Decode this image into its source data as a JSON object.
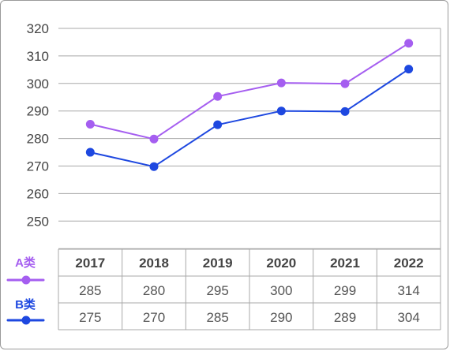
{
  "chart_data": {
    "type": "line",
    "categories": [
      "2017",
      "2018",
      "2019",
      "2020",
      "2021",
      "2022"
    ],
    "y_ticks": [
      "320",
      "310",
      "300",
      "290",
      "280",
      "270",
      "260",
      "250"
    ],
    "ylim": [
      240,
      320
    ],
    "grid": true,
    "legend_position": "left, beside table",
    "series": [
      {
        "name": "A类",
        "color": "#a55ef0",
        "values": [
          285,
          280,
          295,
          300,
          299,
          314
        ],
        "table_values": [
          "285",
          "280",
          "295",
          "300",
          "299",
          "314"
        ],
        "plot_values": [
          285.2,
          279.8,
          295.3,
          300.2,
          299.9,
          314.6
        ]
      },
      {
        "name": "B类",
        "color": "#1e48e0",
        "values": [
          275,
          270,
          285,
          290,
          289,
          304
        ],
        "table_values": [
          "275",
          "270",
          "285",
          "290",
          "289",
          "304"
        ],
        "plot_values": [
          275,
          269.8,
          285,
          290,
          289.8,
          305.2
        ]
      }
    ]
  }
}
